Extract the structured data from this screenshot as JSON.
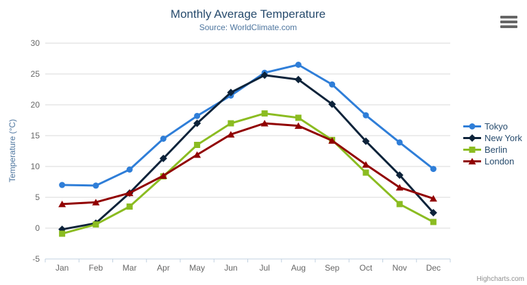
{
  "title": "Monthly Average Temperature",
  "subtitle": "Source: WorldClimate.com",
  "credits": "Highcharts.com",
  "export_menu": {
    "icon": "hamburger-icon",
    "color": "#666666"
  },
  "chart_data": {
    "type": "line",
    "title": "Monthly Average Temperature",
    "subtitle": "Source: WorldClimate.com",
    "categories": [
      "Jan",
      "Feb",
      "Mar",
      "Apr",
      "May",
      "Jun",
      "Jul",
      "Aug",
      "Sep",
      "Oct",
      "Nov",
      "Dec"
    ],
    "series": [
      {
        "name": "Tokyo",
        "color": "#2f7ed8",
        "marker": "circle",
        "values": [
          7.0,
          6.9,
          9.5,
          14.5,
          18.2,
          21.5,
          25.2,
          26.5,
          23.3,
          18.3,
          13.9,
          9.6
        ]
      },
      {
        "name": "New York",
        "color": "#0d233a",
        "marker": "diamond",
        "values": [
          -0.2,
          0.8,
          5.7,
          11.3,
          17.0,
          22.0,
          24.8,
          24.1,
          20.1,
          14.1,
          8.6,
          2.5
        ]
      },
      {
        "name": "Berlin",
        "color": "#8bbc21",
        "marker": "square",
        "values": [
          -0.9,
          0.6,
          3.5,
          8.4,
          13.5,
          17.0,
          18.6,
          17.9,
          14.3,
          9.0,
          3.9,
          1.0
        ]
      },
      {
        "name": "London",
        "color": "#910000",
        "marker": "triangle",
        "values": [
          3.9,
          4.2,
          5.7,
          8.5,
          11.9,
          15.2,
          17.0,
          16.6,
          14.2,
          10.3,
          6.6,
          4.8
        ]
      }
    ],
    "xlabel": "",
    "ylabel": "Temperature (°C)",
    "ylim": [
      -5,
      30
    ],
    "yticks": [
      -5,
      0,
      5,
      10,
      15,
      20,
      25,
      30
    ],
    "grid": true,
    "legend_position": "right",
    "colors": {
      "gridline": "#d8d8d8",
      "axis_line": "#c0d0e0",
      "axis_label": "#666666",
      "title": "#274b6d",
      "subtitle": "#4d759e",
      "legend_text": "#274b6d",
      "credits": "#909090"
    }
  }
}
